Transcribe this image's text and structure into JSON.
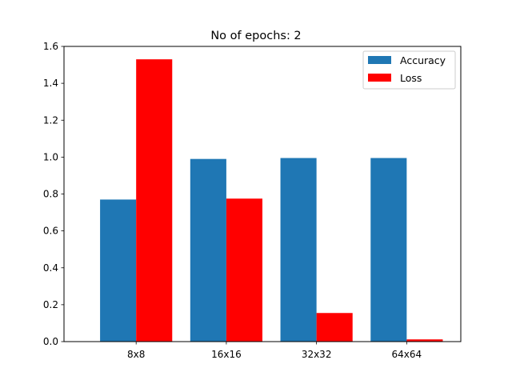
{
  "chart_data": {
    "type": "bar",
    "title": "No of epochs: 2",
    "xlabel": "",
    "ylabel": "",
    "categories": [
      "8x8",
      "16x16",
      "32x32",
      "64x64"
    ],
    "ylim": [
      0,
      1.6
    ],
    "yticks": [
      "0.0",
      "0.2",
      "0.4",
      "0.6",
      "0.8",
      "1.0",
      "1.2",
      "1.4",
      "1.6"
    ],
    "grid": false,
    "legend_position": "top-right",
    "series": [
      {
        "name": "Accuracy",
        "color": "#1f77b4",
        "values": [
          0.77,
          0.99,
          0.995,
          0.995
        ]
      },
      {
        "name": "Loss",
        "color": "#ff0000",
        "values": [
          1.53,
          0.775,
          0.155,
          0.012
        ]
      }
    ]
  }
}
